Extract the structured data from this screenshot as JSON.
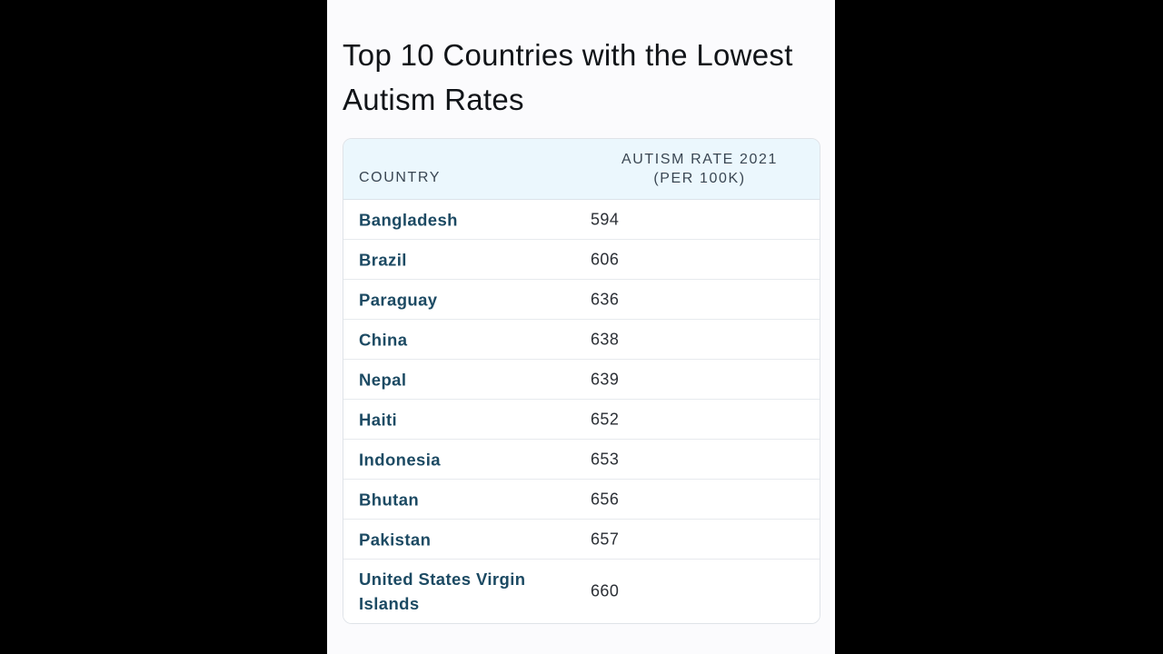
{
  "title": "Top 10 Countries with the Lowest Autism Rates",
  "table": {
    "headers": {
      "country": "COUNTRY",
      "rate_line1": "AUTISM RATE 2021",
      "rate_line2": "(PER 100K)"
    },
    "rows": [
      {
        "country": "Bangladesh",
        "rate": "594"
      },
      {
        "country": "Brazil",
        "rate": "606"
      },
      {
        "country": "Paraguay",
        "rate": "636"
      },
      {
        "country": "China",
        "rate": "638"
      },
      {
        "country": "Nepal",
        "rate": "639"
      },
      {
        "country": "Haiti",
        "rate": "652"
      },
      {
        "country": "Indonesia",
        "rate": "653"
      },
      {
        "country": "Bhutan",
        "rate": "656"
      },
      {
        "country": "Pakistan",
        "rate": "657"
      },
      {
        "country": "United States Virgin Islands",
        "rate": "660"
      }
    ]
  },
  "colors": {
    "background": "#000000",
    "card": "#fbfbfd",
    "header_bg": "#ebf7fd",
    "country_text": "#1c4a63"
  }
}
